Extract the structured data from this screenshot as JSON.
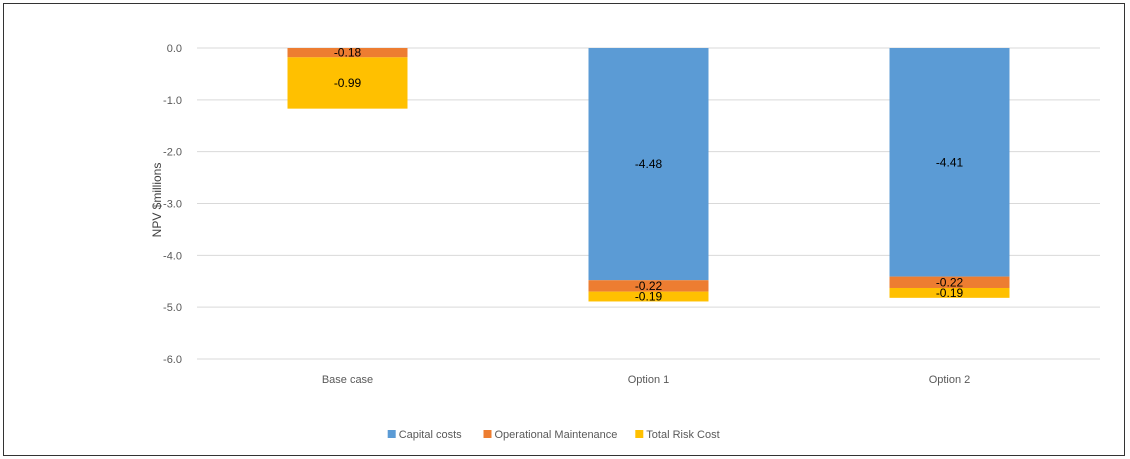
{
  "chart_data": {
    "type": "bar",
    "stacked": true,
    "title": "",
    "xlabel": "",
    "ylabel": "NPV $millions",
    "categories": [
      "Base case",
      "Option 1",
      "Option 2"
    ],
    "series": [
      {
        "name": "Capital costs",
        "values": [
          0,
          -4.48,
          -4.41
        ],
        "labels": [
          "",
          "-4.48",
          "-4.41"
        ]
      },
      {
        "name": "Operational Maintenance",
        "values": [
          -0.18,
          -0.22,
          -0.22
        ],
        "labels": [
          "-0.18",
          "-0.22",
          "-0.22"
        ]
      },
      {
        "name": "Total Risk Cost",
        "values": [
          -0.99,
          -0.19,
          -0.19
        ],
        "labels": [
          "-0.99",
          "-0.19",
          "-0.19"
        ]
      }
    ],
    "ylim": [
      -6.0,
      0.0
    ],
    "yticks": [
      0.0,
      -1.0,
      -2.0,
      -3.0,
      -4.0,
      -5.0,
      -6.0
    ],
    "ytick_labels": [
      "0.0",
      "-1.0",
      "-2.0",
      "-3.0",
      "-4.0",
      "-5.0",
      "-6.0"
    ],
    "grid": true,
    "legend_position": "bottom",
    "colors": [
      "#5b9bd5",
      "#ed7d31",
      "#ffc000"
    ]
  }
}
